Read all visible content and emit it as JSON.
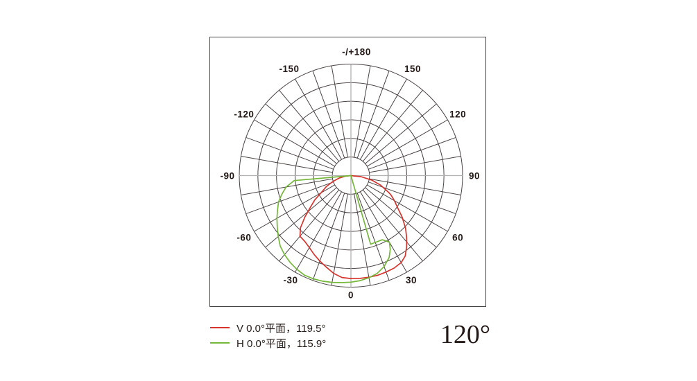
{
  "chart_data": {
    "type": "polar_intensity_distribution",
    "title": "",
    "angle_unit": "degrees",
    "zero_direction": "down",
    "positive_side": "right",
    "grid": {
      "rings": 6,
      "radial_step_deg": 10,
      "label_step_deg": 30,
      "grid_color": "#4a4242",
      "axis_color": "#b0b0b0"
    },
    "angle_labels": [
      {
        "angle": 180,
        "label": "-/+180"
      },
      {
        "angle": -150,
        "label": "-150"
      },
      {
        "angle": 150,
        "label": "150"
      },
      {
        "angle": -120,
        "label": "-120"
      },
      {
        "angle": 120,
        "label": "120"
      },
      {
        "angle": -90,
        "label": "-90"
      },
      {
        "angle": 90,
        "label": "90"
      },
      {
        "angle": -60,
        "label": "-60"
      },
      {
        "angle": 60,
        "label": "60"
      },
      {
        "angle": -30,
        "label": "-30"
      },
      {
        "angle": 30,
        "label": "30"
      },
      {
        "angle": 0,
        "label": "0"
      }
    ],
    "series": [
      {
        "name": "V 0.0°平面，119.5°",
        "plane": "V",
        "plane_angle_deg": 0.0,
        "beam_angle_deg": 119.5,
        "color": "#d7342e",
        "points": [
          [
            -90,
            0
          ],
          [
            -84,
            0.05
          ],
          [
            -78,
            0.11
          ],
          [
            -72,
            0.17
          ],
          [
            -66,
            0.24
          ],
          [
            -60,
            0.31
          ],
          [
            -56,
            0.39
          ],
          [
            -52,
            0.46
          ],
          [
            -48,
            0.555
          ],
          [
            -44,
            0.65
          ],
          [
            -40,
            0.71
          ],
          [
            -35,
            0.72
          ],
          [
            -30,
            0.745
          ],
          [
            -25,
            0.78
          ],
          [
            -20,
            0.815
          ],
          [
            -15,
            0.85
          ],
          [
            -10,
            0.89
          ],
          [
            -5,
            0.917
          ],
          [
            0,
            0.923
          ],
          [
            5,
            0.925
          ],
          [
            10,
            0.925
          ],
          [
            15,
            0.925
          ],
          [
            20,
            0.92
          ],
          [
            25,
            0.915
          ],
          [
            30,
            0.9
          ],
          [
            34,
            0.87
          ],
          [
            38,
            0.81
          ],
          [
            42,
            0.745
          ],
          [
            46,
            0.68
          ],
          [
            51,
            0.59
          ],
          [
            56,
            0.5
          ],
          [
            60,
            0.45
          ],
          [
            64,
            0.4
          ],
          [
            66,
            0.37
          ],
          [
            72,
            0.28
          ],
          [
            78,
            0.19
          ],
          [
            84,
            0.09
          ],
          [
            90,
            0
          ]
        ]
      },
      {
        "name": "H 0.0°平面，115.9°",
        "plane": "H",
        "plane_angle_deg": 0.0,
        "beam_angle_deg": 115.9,
        "color": "#74b739",
        "points": [
          [
            -90,
            0
          ],
          [
            -85,
            0.51
          ],
          [
            -80,
            0.59
          ],
          [
            -75,
            0.64
          ],
          [
            -70,
            0.69
          ],
          [
            -65,
            0.725
          ],
          [
            -60,
            0.765
          ],
          [
            -55,
            0.805
          ],
          [
            -50,
            0.85
          ],
          [
            -45,
            0.895
          ],
          [
            -40,
            0.925
          ],
          [
            -35,
            0.95
          ],
          [
            -30,
            0.97
          ],
          [
            -25,
            0.985
          ],
          [
            -20,
            0.985
          ],
          [
            -15,
            0.98
          ],
          [
            -10,
            0.972
          ],
          [
            -5,
            0.963
          ],
          [
            0,
            0.955
          ],
          [
            5,
            0.945
          ],
          [
            10,
            0.93
          ],
          [
            15,
            0.908
          ],
          [
            20,
            0.868
          ],
          [
            25,
            0.81
          ],
          [
            28,
            0.75
          ],
          [
            30,
            0.69
          ],
          [
            26,
            0.64
          ],
          [
            16,
            0.64
          ],
          [
            15,
            0
          ]
        ]
      }
    ]
  },
  "legend": {
    "items": [
      {
        "label": "V 0.0°平面，119.5°",
        "color": "#d7342e"
      },
      {
        "label": "H 0.0°平面，115.9°",
        "color": "#74b739"
      }
    ]
  },
  "footer": {
    "beam_angle_label": "120°"
  },
  "colors": {
    "text": "#231815",
    "grid": "#4a4242",
    "axis": "#b0b0b0",
    "border": "#4a4545"
  }
}
